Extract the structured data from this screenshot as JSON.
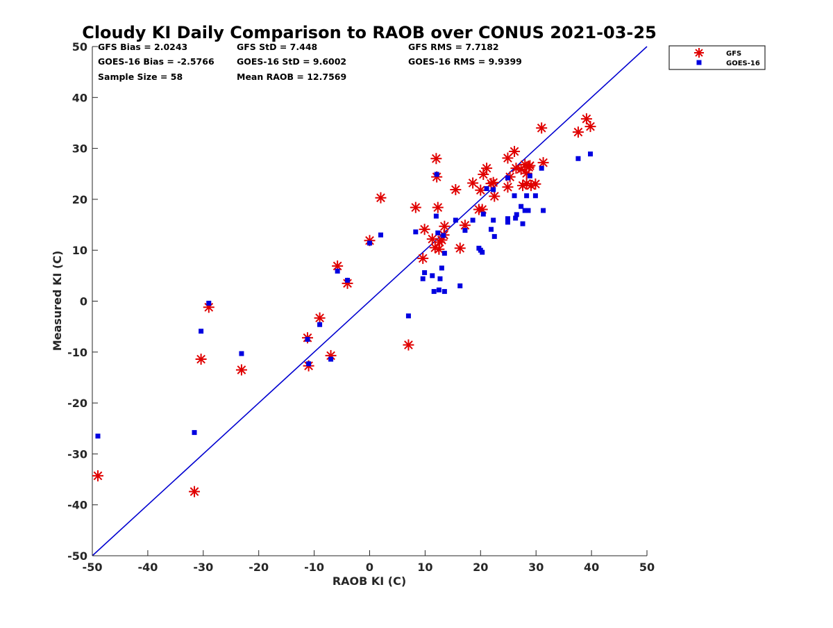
{
  "chart_data": {
    "type": "scatter",
    "title": "Cloudy KI Daily Comparison to RAOB over CONUS 2021-03-25",
    "xlabel": "RAOB KI (C)",
    "ylabel": "Measured KI (C)",
    "xlim": [
      -50,
      50
    ],
    "ylim": [
      -50,
      50
    ],
    "xticks": [
      "-50",
      "-40",
      "-30",
      "-20",
      "-10",
      "0",
      "10",
      "20",
      "30",
      "40",
      "50"
    ],
    "yticks": [
      "-50",
      "-40",
      "-30",
      "-20",
      "-10",
      "0",
      "10",
      "20",
      "30",
      "40",
      "50"
    ],
    "grid": false,
    "legend_position": "outside-top-right",
    "reference_line": {
      "from": [
        -50,
        -50
      ],
      "to": [
        50,
        50
      ],
      "color": "#0000d0"
    },
    "stats": [
      [
        "GFS Bias = 2.0243",
        "GFS StD = 7.448",
        "GFS RMS = 7.7182"
      ],
      [
        "GOES-16 Bias = -2.5766",
        "GOES-16 StD = 9.6002",
        "GOES-16 RMS = 9.9399"
      ],
      [
        "Sample Size = 58",
        "Mean RAOB = 12.7569",
        ""
      ]
    ],
    "series": [
      {
        "name": "GFS",
        "marker": "asterisk",
        "color": "#e00000",
        "points": [
          [
            -49,
            -34.3
          ],
          [
            -31.6,
            -37.4
          ],
          [
            -30.4,
            -11.4
          ],
          [
            -29,
            -1.2
          ],
          [
            -23.1,
            -13.5
          ],
          [
            -11.2,
            -7.2
          ],
          [
            -11.0,
            -12.7
          ],
          [
            -9.0,
            -3.3
          ],
          [
            -7.0,
            -10.7
          ],
          [
            -5.8,
            6.9
          ],
          [
            -4.0,
            3.5
          ],
          [
            0.0,
            11.9
          ],
          [
            2.0,
            20.3
          ],
          [
            7.0,
            -8.6
          ],
          [
            8.3,
            18.4
          ],
          [
            9.6,
            8.4
          ],
          [
            9.9,
            14.1
          ],
          [
            11.3,
            12.2
          ],
          [
            11.8,
            10.5
          ],
          [
            12.0,
            28.0
          ],
          [
            12.1,
            24.4
          ],
          [
            12.3,
            18.4
          ],
          [
            12.5,
            10.2
          ],
          [
            12.6,
            11.6
          ],
          [
            13.0,
            12.0
          ],
          [
            13.4,
            13.0
          ],
          [
            13.5,
            14.7
          ],
          [
            15.5,
            21.9
          ],
          [
            16.3,
            10.4
          ],
          [
            17.2,
            14.9
          ],
          [
            18.6,
            23.2
          ],
          [
            19.7,
            18.0
          ],
          [
            20.0,
            21.8
          ],
          [
            20.3,
            18.0
          ],
          [
            20.5,
            24.9
          ],
          [
            21.1,
            26.1
          ],
          [
            21.9,
            23.1
          ],
          [
            22.3,
            23.3
          ],
          [
            22.5,
            20.6
          ],
          [
            24.9,
            28.1
          ],
          [
            24.9,
            22.4
          ],
          [
            25.3,
            24.4
          ],
          [
            26.1,
            29.4
          ],
          [
            26.4,
            26.1
          ],
          [
            27.3,
            25.9
          ],
          [
            27.6,
            22.7
          ],
          [
            28.0,
            26.8
          ],
          [
            28.3,
            25.1
          ],
          [
            28.3,
            23.1
          ],
          [
            28.7,
            26.3
          ],
          [
            29.1,
            22.7
          ],
          [
            29.9,
            23.0
          ],
          [
            31.0,
            34.0
          ],
          [
            31.3,
            27.2
          ],
          [
            37.6,
            33.2
          ],
          [
            39.1,
            35.8
          ],
          [
            39.8,
            34.3
          ],
          [
            28.9,
            26.6
          ]
        ]
      },
      {
        "name": "GOES-16",
        "marker": "square",
        "color": "#0000e0",
        "points": [
          [
            -49,
            -26.5
          ],
          [
            -31.6,
            -25.8
          ],
          [
            -30.4,
            -5.9
          ],
          [
            -29,
            -0.4
          ],
          [
            -23.1,
            -10.3
          ],
          [
            -11.2,
            -7.5
          ],
          [
            -11.0,
            -12.3
          ],
          [
            -9.0,
            -4.6
          ],
          [
            -7.0,
            -11.4
          ],
          [
            -5.8,
            5.9
          ],
          [
            -4.0,
            4.1
          ],
          [
            0.0,
            11.4
          ],
          [
            2.0,
            13.0
          ],
          [
            7.0,
            -2.9
          ],
          [
            8.3,
            13.6
          ],
          [
            9.6,
            4.4
          ],
          [
            9.9,
            5.6
          ],
          [
            11.3,
            5.0
          ],
          [
            11.6,
            1.9
          ],
          [
            12.0,
            16.7
          ],
          [
            12.1,
            24.9
          ],
          [
            12.3,
            13.4
          ],
          [
            12.5,
            2.2
          ],
          [
            12.7,
            4.4
          ],
          [
            13.0,
            6.5
          ],
          [
            13.3,
            12.9
          ],
          [
            13.5,
            9.4
          ],
          [
            13.5,
            1.9
          ],
          [
            15.5,
            15.9
          ],
          [
            16.3,
            3.0
          ],
          [
            17.2,
            13.9
          ],
          [
            18.6,
            15.9
          ],
          [
            19.7,
            10.4
          ],
          [
            20.0,
            10.0
          ],
          [
            20.3,
            9.6
          ],
          [
            20.5,
            17.1
          ],
          [
            21.1,
            22.1
          ],
          [
            21.9,
            14.1
          ],
          [
            22.3,
            21.9
          ],
          [
            22.3,
            15.9
          ],
          [
            22.5,
            12.7
          ],
          [
            24.9,
            24.2
          ],
          [
            24.9,
            16.2
          ],
          [
            24.9,
            15.5
          ],
          [
            26.1,
            20.7
          ],
          [
            26.3,
            16.3
          ],
          [
            26.5,
            17.0
          ],
          [
            27.3,
            18.6
          ],
          [
            27.6,
            15.2
          ],
          [
            28.0,
            17.8
          ],
          [
            28.3,
            20.7
          ],
          [
            28.6,
            17.8
          ],
          [
            28.9,
            24.6
          ],
          [
            29.9,
            20.7
          ],
          [
            31.0,
            26.1
          ],
          [
            31.3,
            17.8
          ],
          [
            37.6,
            28.0
          ],
          [
            39.8,
            28.9
          ]
        ]
      }
    ]
  }
}
